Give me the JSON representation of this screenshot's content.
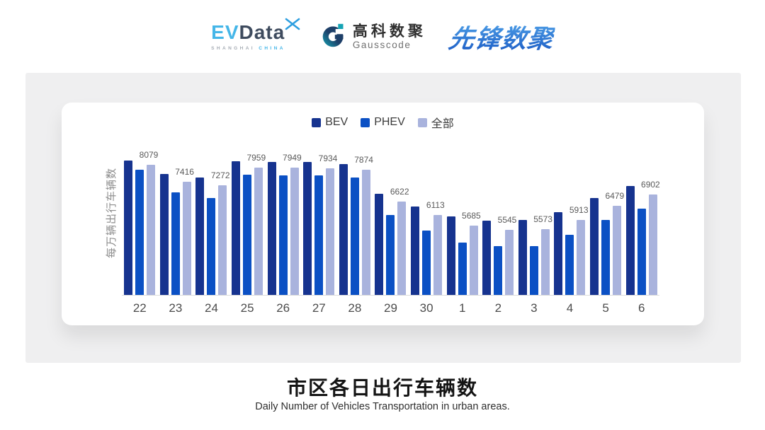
{
  "header": {
    "logos": {
      "evdata": {
        "ev": "EV",
        "data": "Data",
        "sub_left": "SHANGHAI",
        "sub_right": "CHINA"
      },
      "gausscode": {
        "cn": "高科数聚",
        "en": "Gausscode"
      },
      "pioneer": {
        "text": "先锋数聚"
      }
    }
  },
  "chart_data": {
    "type": "bar",
    "title": "市区各日出行车辆数",
    "categories": [
      "22",
      "23",
      "24",
      "25",
      "26",
      "27",
      "28",
      "29",
      "30",
      "1",
      "2",
      "3",
      "4",
      "5",
      "6"
    ],
    "series": [
      {
        "name": "BEV",
        "color": "#16338f",
        "values": [
          8240,
          7695,
          7580,
          8190,
          8170,
          8170,
          8080,
          6940,
          6455,
          6070,
          5905,
          5930,
          6225,
          6785,
          7230
        ]
      },
      {
        "name": "PHEV",
        "color": "#0b50c4",
        "values": [
          7870,
          6985,
          6780,
          7670,
          7640,
          7640,
          7580,
          6120,
          5500,
          5040,
          4900,
          4900,
          5340,
          5930,
          6370
        ]
      },
      {
        "name": "全部",
        "color": "#a9b3dd",
        "values": [
          8079,
          7416,
          7272,
          7959,
          7949,
          7934,
          7874,
          6622,
          6113,
          5685,
          5545,
          5573,
          5913,
          6479,
          6902
        ]
      }
    ],
    "data_labels": [
      8079,
      7416,
      7272,
      7959,
      7949,
      7934,
      7874,
      6622,
      6113,
      5685,
      5545,
      5573,
      5913,
      6479,
      6902
    ],
    "ylabel": "每万辆出行车辆数",
    "xlabel": "",
    "ylim": [
      3000,
      9000
    ],
    "grid": false,
    "legend_position": "top"
  },
  "footer": {
    "title": "市区各日出行车辆数",
    "subtitle": "Daily Number of Vehicles Transportation in urban areas."
  }
}
